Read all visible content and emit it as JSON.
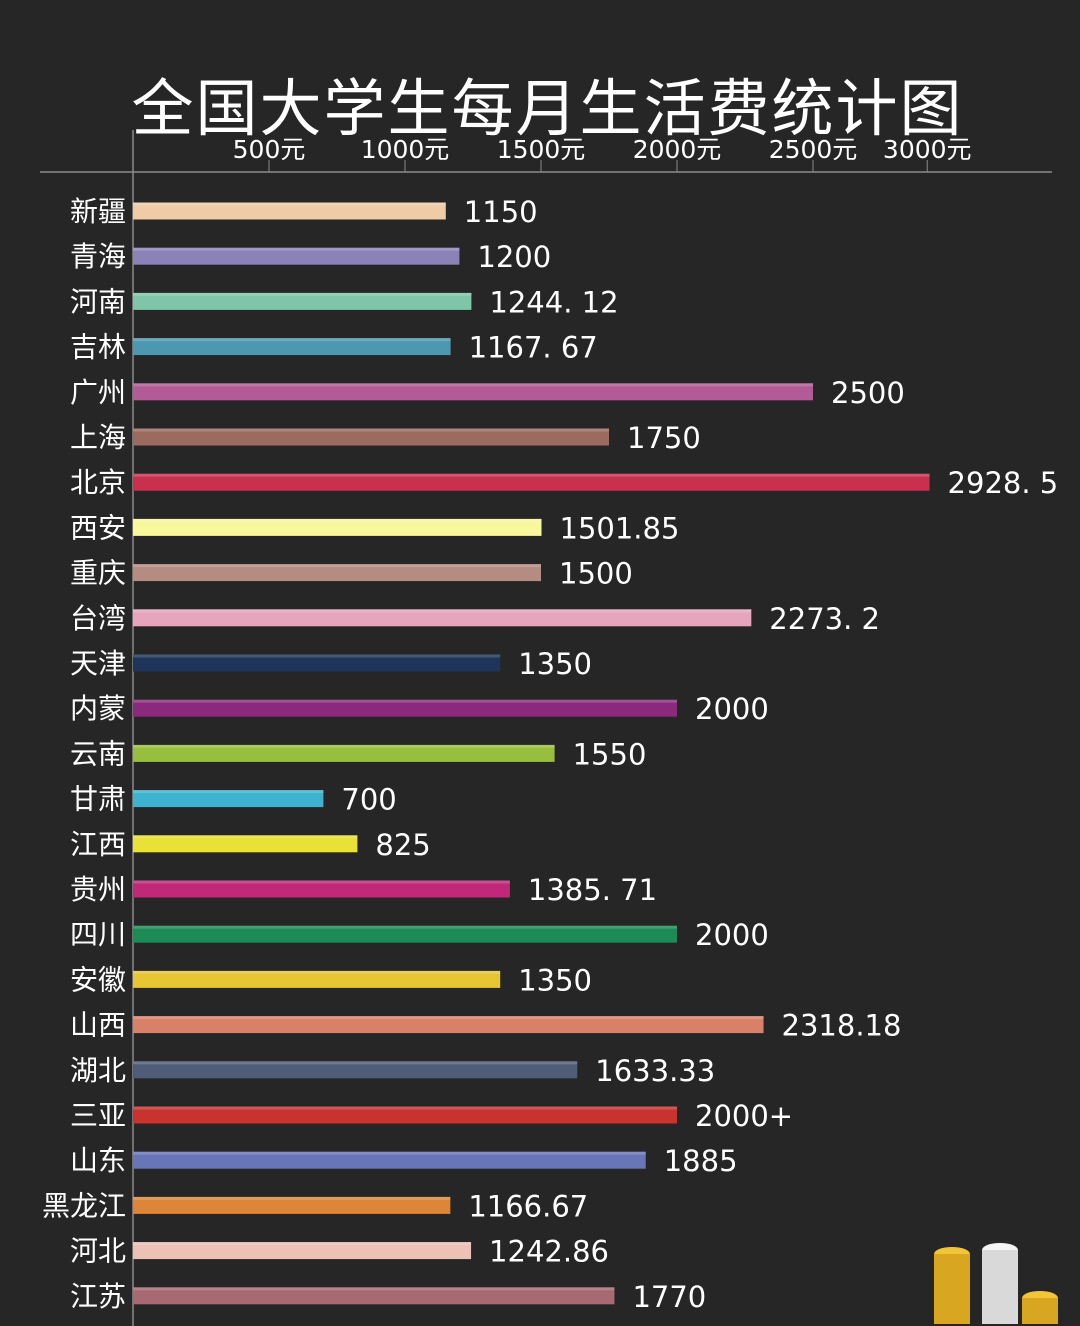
{
  "chart_data": {
    "type": "bar",
    "orientation": "horizontal",
    "title": "全国大学生每月生活费统计图",
    "x_ticks": [
      "500元",
      "1000元",
      "1500元",
      "2000元",
      "2500元",
      "3000元"
    ],
    "xlim": [
      0,
      3000
    ],
    "grid": false,
    "categories": [
      "新疆",
      "青海",
      "河南",
      "吉林",
      "广州",
      "上海",
      "北京",
      "西安",
      "重庆",
      "台湾",
      "天津",
      "内蒙",
      "云南",
      "甘肃",
      "江西",
      "贵州",
      "四川",
      "安徽",
      "山西",
      "湖北",
      "三亚",
      "山东",
      "黑龙江",
      "河北",
      "江苏"
    ],
    "values": [
      1150,
      1200,
      1244.12,
      1167.67,
      2500,
      1750,
      2928.5,
      1501.85,
      1500,
      2273.2,
      1350,
      2000,
      1550,
      700,
      825,
      1385.71,
      2000,
      1350,
      2318.18,
      1633.33,
      2000,
      1885,
      1166.67,
      1242.86,
      1770
    ],
    "value_labels": [
      "1150",
      "1200",
      "1244. 12",
      "1167. 67",
      "2500",
      "1750",
      "2928. 5",
      "1501.85",
      "1500",
      "2273. 2",
      "1350",
      "2000",
      "1550",
      "700",
      "825",
      "1385. 71",
      "2000",
      "1350",
      "2318.18",
      "1633.33",
      "2000+",
      "1885",
      "1166.67",
      "1242.86",
      "1770"
    ],
    "colors": [
      "#efcba6",
      "#8b83b8",
      "#7ec5a9",
      "#4c98b0",
      "#b25b96",
      "#9c6b5f",
      "#c9304e",
      "#f7f79c",
      "#b58c82",
      "#e7a5bd",
      "#1e3458",
      "#8b2a7c",
      "#98be3f",
      "#3eb3cf",
      "#e9e135",
      "#c1287a",
      "#1c8b55",
      "#e7c533",
      "#d98168",
      "#505d79",
      "#c8332e",
      "#6876b7",
      "#dd8538",
      "#ecc1b6",
      "#a86a72"
    ]
  }
}
